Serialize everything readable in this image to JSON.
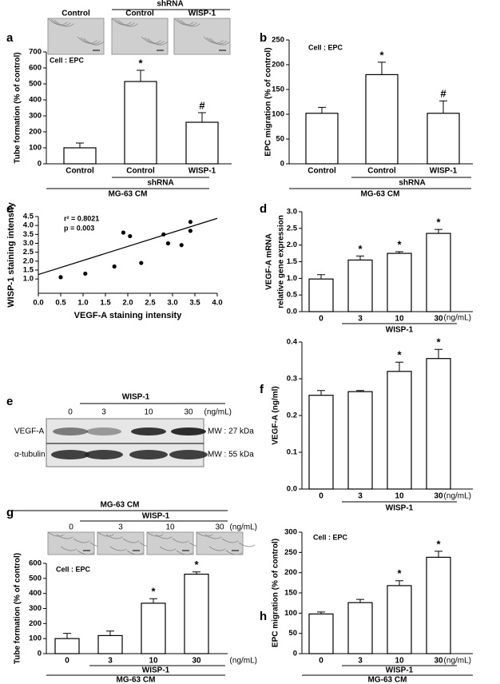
{
  "chart_data": [
    {
      "type": "bar",
      "panel": "a",
      "image_group": "shRNA",
      "image_labels": [
        "Control",
        "Control",
        "WISP-1"
      ],
      "annotation": "Cell : EPC",
      "ylabel": "Tube formation (% of control)",
      "categories": [
        "Control",
        "Control",
        "WISP-1"
      ],
      "group_labels": [
        "shRNA",
        "MG-63 CM"
      ],
      "values": [
        100,
        515,
        260
      ],
      "errors": [
        30,
        70,
        60
      ],
      "markers": [
        null,
        "*",
        "#"
      ],
      "ylim": [
        0,
        700
      ],
      "yticks": [
        0,
        100,
        200,
        300,
        400,
        500,
        600,
        700
      ],
      "color": "#ffffff"
    },
    {
      "type": "bar",
      "panel": "b",
      "annotation": "Cell : EPC",
      "ylabel": "EPC migration (% of control)",
      "categories": [
        "Control",
        "Control",
        "WISP-1"
      ],
      "group_labels": [
        "shRNA",
        "MG-63 CM"
      ],
      "values": [
        102,
        180,
        102
      ],
      "errors": [
        12,
        25,
        25
      ],
      "markers": [
        null,
        "*",
        "#"
      ],
      "ylim": [
        0,
        250
      ],
      "yticks": [
        0,
        50,
        100,
        150,
        200,
        250
      ],
      "color": "#ffffff"
    },
    {
      "type": "scatter",
      "panel": "c",
      "r2_label": "r² = 0.8021",
      "p_label": "p = 0.003",
      "xlabel": "VEGF-A staining intensity",
      "ylabel": "WISP-1 staining intensity",
      "x": [
        0.5,
        1.05,
        1.7,
        1.9,
        2.05,
        2.3,
        2.8,
        2.9,
        3.2,
        3.4,
        3.4
      ],
      "y": [
        1.1,
        1.3,
        1.7,
        3.6,
        3.4,
        1.9,
        3.5,
        3.0,
        2.9,
        4.2,
        3.7
      ],
      "fit": {
        "x": [
          0,
          4
        ],
        "y": [
          1.25,
          4.4
        ]
      },
      "xlim": [
        0,
        4
      ],
      "xticks": [
        {
          "value": 0,
          "label": "0.0"
        },
        0.5,
        {
          "value": 1,
          "label": "1.0"
        },
        1.5,
        {
          "value": 2,
          "label": "2.0"
        },
        2.5,
        {
          "value": 3,
          "label": "3.0"
        },
        3.5,
        {
          "value": 4,
          "label": "4.0"
        }
      ],
      "ylim": [
        0.2,
        4.5
      ],
      "yticks": [
        {
          "value": 1,
          "label": "1.0"
        },
        1.5,
        {
          "value": 2,
          "label": "2.0"
        },
        2.5,
        {
          "value": 3,
          "label": "3.0"
        },
        3.5,
        {
          "value": 4,
          "label": "4.0"
        },
        4.5
      ],
      "color": "#000000"
    },
    {
      "type": "bar",
      "panel": "d",
      "ylabel": [
        "VEGF-A mRNA",
        "relative gene expression"
      ],
      "categories": [
        "0",
        "3",
        "10",
        "30"
      ],
      "unit": "(ng/mL)",
      "group_labels": [
        "WISP-1"
      ],
      "values": [
        0.98,
        1.55,
        1.75,
        2.35
      ],
      "errors": [
        0.13,
        0.12,
        0.05,
        0.12
      ],
      "markers": [
        null,
        "*",
        "*",
        "*"
      ],
      "ylim": [
        0,
        3
      ],
      "yticks": [
        {
          "value": 0,
          "label": "0.0"
        },
        0.5,
        {
          "value": 1,
          "label": "1.0"
        },
        1.5,
        {
          "value": 2,
          "label": "2.0"
        },
        2.5,
        {
          "value": 3,
          "label": "3.0"
        }
      ],
      "color": "#ffffff"
    },
    {
      "type": "blot",
      "panel": "e",
      "treatment": "WISP-1",
      "doses": [
        "0",
        "3",
        "10",
        "30"
      ],
      "unit": "(ng/mL)",
      "rows": [
        "VEGF-A",
        "α-tubulin"
      ],
      "mw": [
        "MW : 27 kDa",
        "MW : 55 kDa"
      ]
    },
    {
      "type": "bar",
      "panel": "f",
      "ylabel": "VEGF-A  (ng/ml)",
      "categories": [
        "0",
        "3",
        "10",
        "30"
      ],
      "unit": "(ng/mL)",
      "group_labels": [
        "WISP-1"
      ],
      "values": [
        0.255,
        0.265,
        0.32,
        0.355
      ],
      "errors": [
        0.013,
        0.003,
        0.025,
        0.025
      ],
      "markers": [
        null,
        null,
        "*",
        "*"
      ],
      "ylim": [
        0,
        0.4
      ],
      "yticks": [
        {
          "value": 0,
          "label": "0.0"
        },
        0.1,
        0.2,
        0.3,
        0.4
      ],
      "color": "#ffffff"
    },
    {
      "type": "bar",
      "panel": "g",
      "top_labels": [
        "MG-63 CM",
        "WISP-1"
      ],
      "image_labels": [
        "0",
        "3",
        "10",
        "30"
      ],
      "annotation": "Cell : EPC",
      "ylabel": "Tube formation (% of control)",
      "categories": [
        "0",
        "3",
        "10",
        "30"
      ],
      "unit": "(ng/mL)",
      "group_labels": [
        "WISP-1",
        "MG-63 CM"
      ],
      "values": [
        100,
        120,
        335,
        528
      ],
      "errors": [
        35,
        30,
        30,
        15
      ],
      "markers": [
        null,
        null,
        "*",
        "*"
      ],
      "ylim": [
        0,
        600
      ],
      "yticks": [
        0,
        100,
        200,
        300,
        400,
        500,
        600
      ],
      "color": "#ffffff"
    },
    {
      "type": "bar",
      "panel": "h",
      "annotation": "Cell : EPC",
      "ylabel": "EPC migration (% of control)",
      "categories": [
        "0",
        "3",
        "10",
        "30"
      ],
      "unit": "(ng/mL)",
      "group_labels": [
        "WISP-1",
        "MG-63 CM"
      ],
      "values": [
        98,
        126,
        168,
        238
      ],
      "errors": [
        5,
        8,
        12,
        15
      ],
      "markers": [
        null,
        null,
        "*",
        "*"
      ],
      "ylim": [
        0,
        300
      ],
      "yticks": [
        0,
        50,
        100,
        150,
        200,
        250,
        300
      ],
      "color": "#ffffff"
    }
  ]
}
